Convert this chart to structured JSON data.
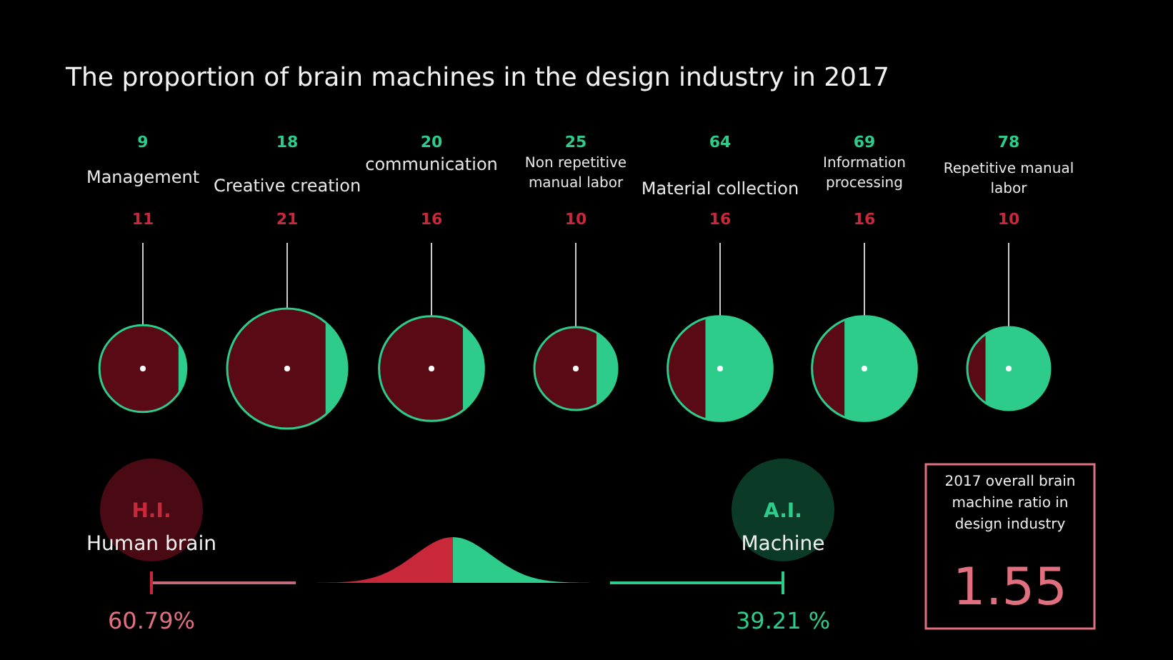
{
  "chart_data": {
    "type": "other",
    "data_labels": true,
    "title": "The proportion of brain machines in the design industry in 2017",
    "categories": [
      "Management",
      "Creative creation",
      "communication",
      "Non repetitive manual labor",
      "Material collection",
      "Information processing",
      "Repetitive manual labor"
    ],
    "series": [
      {
        "color": "#2ecc8a",
        "values": [
          9,
          18,
          20,
          25,
          64,
          69,
          78
        ]
      },
      {
        "color": "#c8283a",
        "values": [
          11,
          21,
          16,
          10,
          16,
          16,
          10
        ]
      }
    ],
    "annotations": [
      "H.I.",
      "Human brain",
      "60.79%",
      "A.I.",
      "Machine",
      "39.21 %",
      "2017 overall brain machine ratio in design industry",
      "1.55"
    ]
  }
}
